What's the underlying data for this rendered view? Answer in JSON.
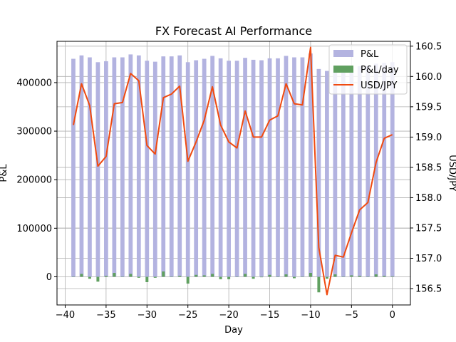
{
  "chart_data": {
    "type": "bar",
    "title": "FX Forecast AI Performance",
    "xlabel": "Day",
    "ylabel": "P&L",
    "y2label": "USD/JPY",
    "x": [
      -39,
      -38,
      -37,
      -36,
      -35,
      -34,
      -33,
      -32,
      -31,
      -30,
      -29,
      -28,
      -27,
      -26,
      -25,
      -24,
      -23,
      -22,
      -21,
      -20,
      -19,
      -18,
      -17,
      -16,
      -15,
      -14,
      -13,
      -12,
      -11,
      -10,
      -9,
      -8,
      -7,
      -6,
      -5,
      -4,
      -3,
      -2,
      -1,
      0
    ],
    "xlim": [
      -41,
      2.2
    ],
    "xticks": [
      -40,
      -35,
      -30,
      -25,
      -20,
      -15,
      -10,
      -5,
      0
    ],
    "ylim": [
      -58000,
      485000
    ],
    "yticks": [
      0,
      100000,
      200000,
      300000,
      400000
    ],
    "y2lim": [
      156.23,
      160.58
    ],
    "y2ticks": [
      156.5,
      157.0,
      157.5,
      158.0,
      158.5,
      159.0,
      159.5,
      160.0,
      160.5
    ],
    "grid": true,
    "legend_position": "top-right",
    "colors": {
      "pnl": "#b3b3e0",
      "pnl_day": "#60a060",
      "usdjpy": "#f04a10"
    },
    "series": [
      {
        "name": "P&L",
        "axis": "left",
        "kind": "bar",
        "values": [
          449000,
          456000,
          452000,
          442000,
          444000,
          452000,
          452000,
          458000,
          456000,
          445000,
          443000,
          454000,
          454000,
          456000,
          442000,
          446000,
          449000,
          455000,
          450000,
          445000,
          445000,
          451000,
          447000,
          446000,
          450000,
          450000,
          455000,
          452000,
          452000,
          460000,
          428000,
          424000,
          429000,
          429000,
          432000,
          434000,
          434000,
          439000,
          441000,
          442000
        ]
      },
      {
        "name": "P&L/day",
        "axis": "left",
        "kind": "bar",
        "values": [
          0,
          6000,
          -4000,
          -10000,
          2000,
          8000,
          0,
          6000,
          -2000,
          -11000,
          -2000,
          11000,
          0,
          2000,
          -14000,
          4000,
          3000,
          6000,
          -5000,
          -5000,
          0,
          6000,
          -4000,
          -1000,
          4000,
          0,
          5000,
          -3000,
          0,
          8000,
          -32000,
          -4000,
          5000,
          0,
          3000,
          2000,
          0,
          5000,
          2000,
          1000
        ]
      },
      {
        "name": "USD/JPY",
        "axis": "right",
        "kind": "line",
        "values": [
          159.2,
          159.88,
          159.52,
          158.52,
          158.68,
          159.55,
          159.57,
          160.05,
          159.93,
          158.86,
          158.72,
          159.65,
          159.71,
          159.84,
          158.6,
          158.92,
          159.28,
          159.83,
          159.2,
          158.92,
          158.82,
          159.43,
          159.0,
          159.0,
          159.28,
          159.35,
          159.88,
          159.55,
          159.53,
          160.48,
          157.18,
          156.4,
          157.05,
          157.02,
          157.42,
          157.8,
          157.92,
          158.58,
          158.98,
          159.04
        ]
      }
    ]
  }
}
